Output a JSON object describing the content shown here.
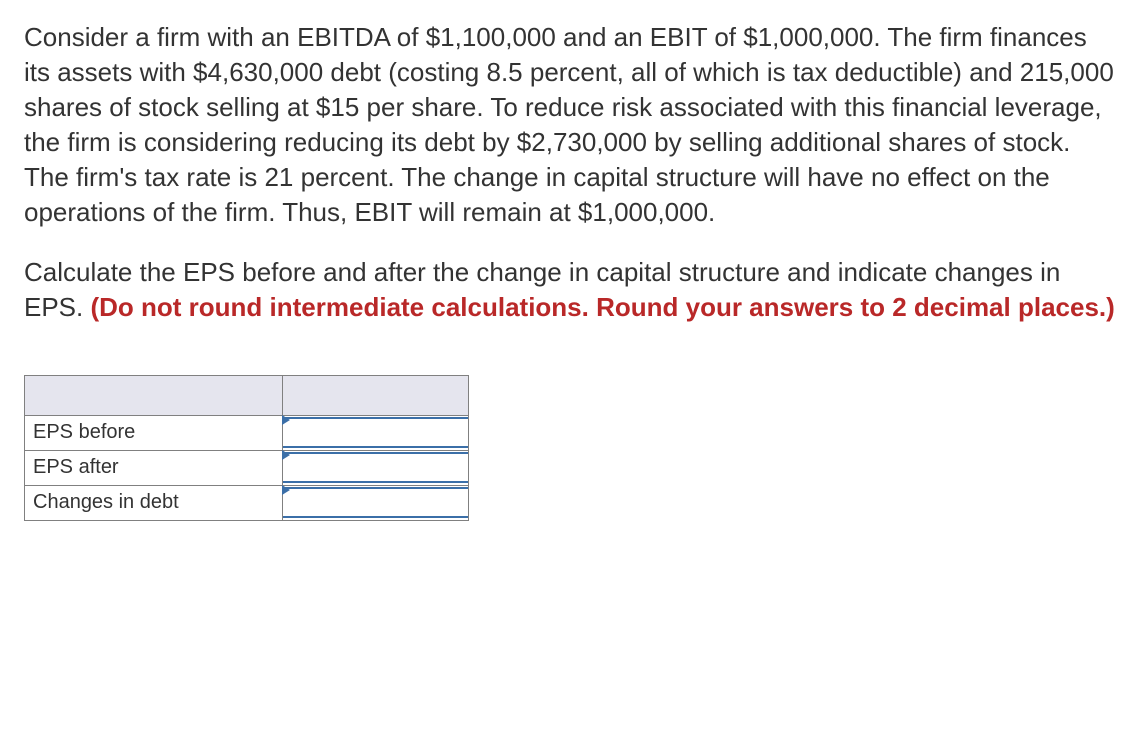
{
  "problem": {
    "paragraph": "Consider a firm with an EBITDA of $1,100,000 and an EBIT of $1,000,000. The firm finances its assets with $4,630,000 debt (costing 8.5 percent, all of which is tax deductible) and 215,000 shares of stock selling at $15 per share. To reduce risk associated with this financial leverage, the firm is considering reducing its debt by $2,730,000 by selling additional shares of stock. The firm's tax rate is 21 percent. The change in capital structure will have no effect on the operations of the firm. Thus, EBIT will remain at $1,000,000.",
    "instruction_plain": "Calculate the EPS before and after the change in capital structure and indicate changes in EPS. ",
    "instruction_red": "(Do not round intermediate calculations. Round your answers to 2 decimal places.)"
  },
  "table": {
    "rows": [
      {
        "label": "EPS before",
        "value": ""
      },
      {
        "label": "EPS after",
        "value": ""
      },
      {
        "label": "Changes in debt",
        "value": ""
      }
    ]
  },
  "styles": {
    "text_color": "#333333",
    "red_color": "#b92828",
    "border_color": "#808080",
    "header_bg": "#e5e5ee",
    "input_border": "#3b6fa8",
    "font_size_body": 26,
    "font_size_table": 20
  }
}
